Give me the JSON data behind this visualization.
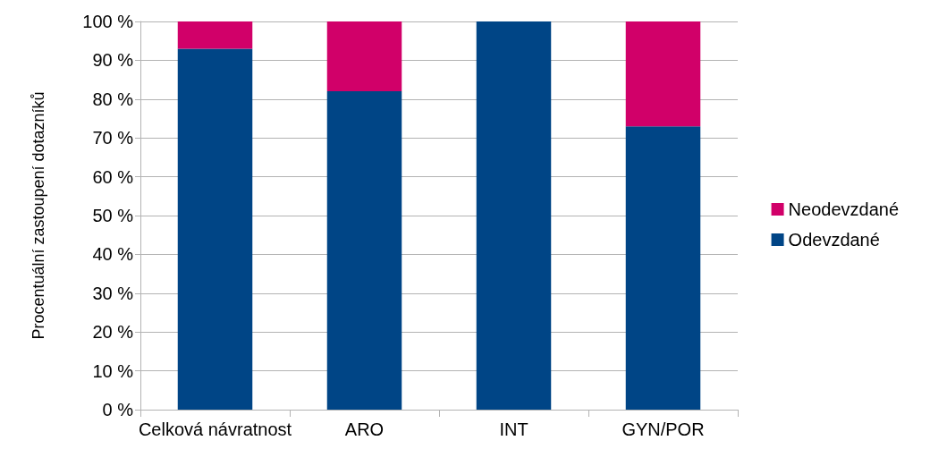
{
  "chart_data": {
    "type": "bar",
    "stacked": true,
    "ylabel": "Procentuální zastoupení dotazníků",
    "categories": [
      "Celková návratnost",
      "ARO",
      "INT",
      "GYN/POR"
    ],
    "series": [
      {
        "name": "Odevzdané",
        "color": "#004586",
        "values": [
          93,
          82,
          100,
          73
        ]
      },
      {
        "name": "Neodevzdané",
        "color": "#d10069",
        "values": [
          7,
          18,
          0,
          27
        ]
      }
    ],
    "ylim": [
      0,
      100
    ],
    "yticks": [
      {
        "value": 0,
        "label": "0 %"
      },
      {
        "value": 10,
        "label": "10 %"
      },
      {
        "value": 20,
        "label": "20 %"
      },
      {
        "value": 30,
        "label": "30 %"
      },
      {
        "value": 40,
        "label": "40 %"
      },
      {
        "value": 50,
        "label": "50 %"
      },
      {
        "value": 60,
        "label": "60 %"
      },
      {
        "value": 70,
        "label": "70 %"
      },
      {
        "value": 80,
        "label": "80 %"
      },
      {
        "value": 90,
        "label": "90 %"
      },
      {
        "value": 100,
        "label": "100 %"
      }
    ],
    "grid": "y",
    "legend": "right"
  }
}
